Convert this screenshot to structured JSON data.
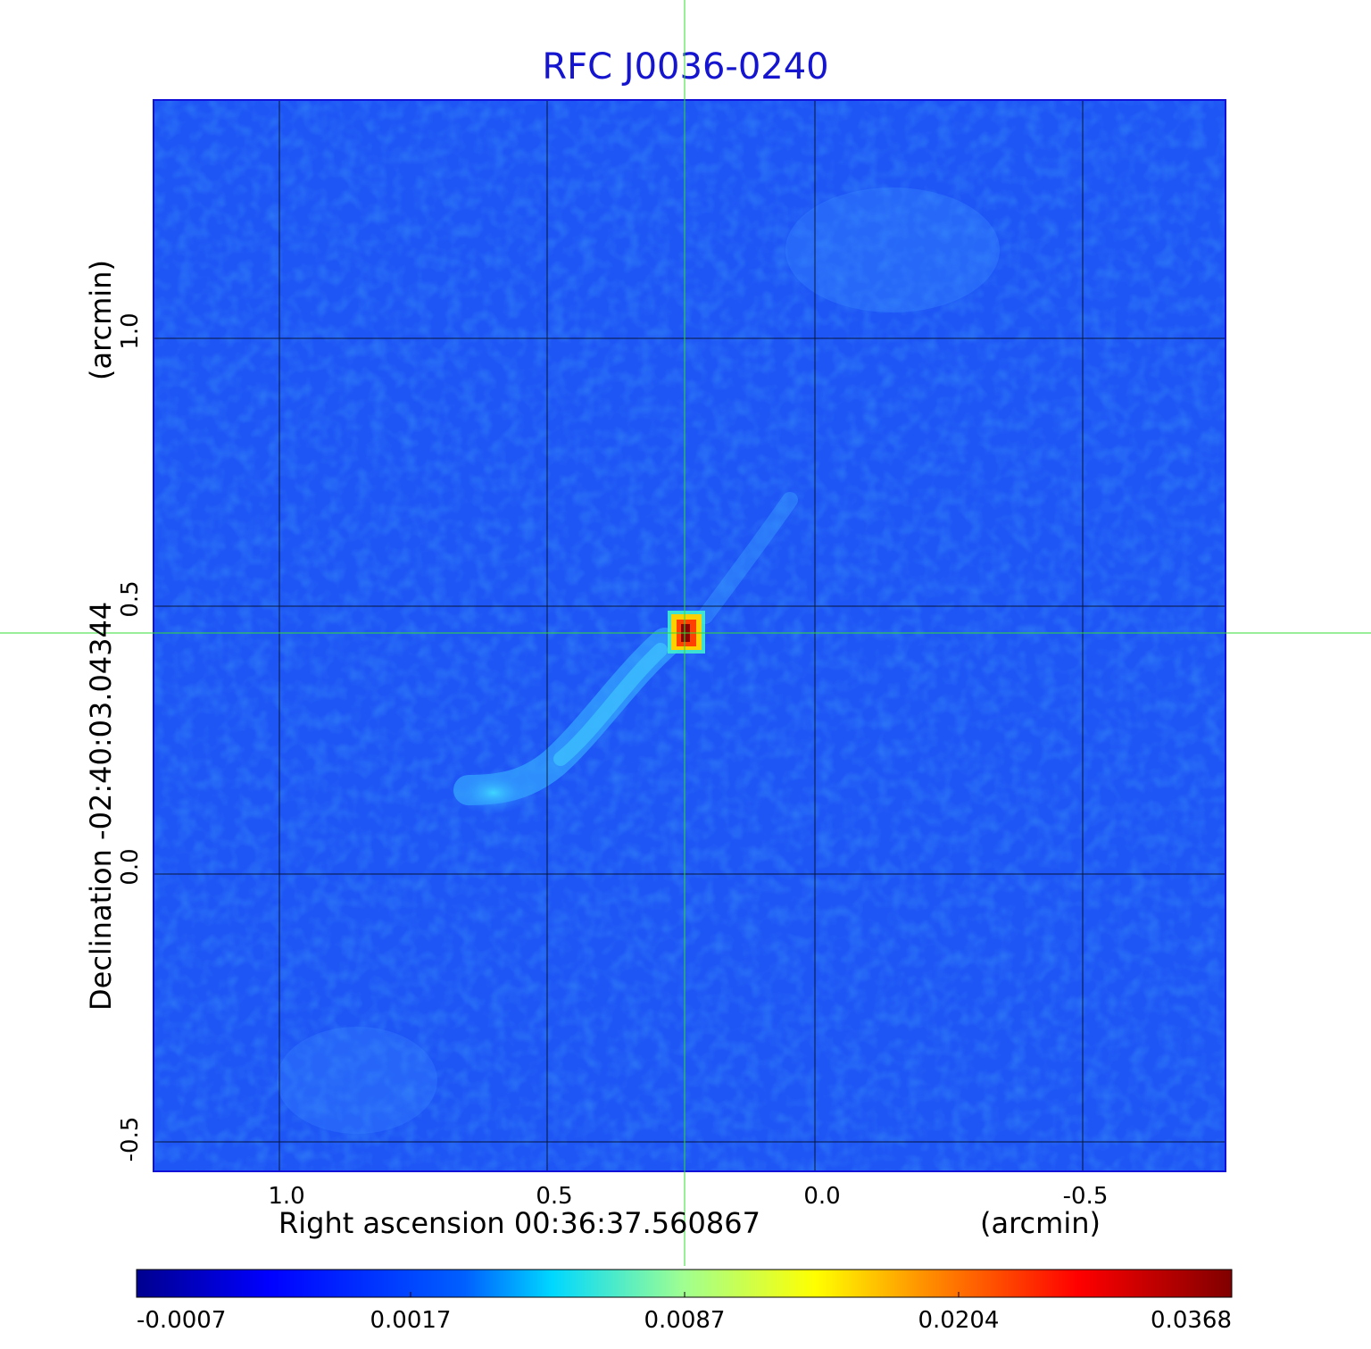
{
  "title": "RFC J0036-0240",
  "x_axis": {
    "label": "Right ascension  00:36:37.560867",
    "unit": "(arcmin)",
    "ticks": [
      "1.0",
      "0.5",
      "0.0",
      "-0.5"
    ]
  },
  "y_axis": {
    "label": "Declination  -02:40:03.04344",
    "unit": "(arcmin)",
    "ticks": [
      "1.0",
      "0.5",
      "0.0",
      "-0.5"
    ]
  },
  "colorbar": {
    "ticks": [
      "-0.0007",
      "0.0017",
      "0.0087",
      "0.0204",
      "0.0368"
    ],
    "colormap": "jet"
  },
  "colors": {
    "title": "#1515d0",
    "crosshair": "#33dd33",
    "background_field": "#1e4ff0"
  }
}
